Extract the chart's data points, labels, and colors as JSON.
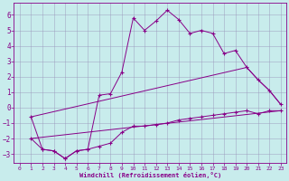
{
  "xlabel": "Windchill (Refroidissement éolien,°C)",
  "xlim": [
    -0.5,
    23.5
  ],
  "ylim": [
    -3.6,
    6.8
  ],
  "yticks": [
    -3,
    -2,
    -1,
    0,
    1,
    2,
    3,
    4,
    5,
    6
  ],
  "xticks": [
    0,
    1,
    2,
    3,
    4,
    5,
    6,
    7,
    8,
    9,
    10,
    11,
    12,
    13,
    14,
    15,
    16,
    17,
    18,
    19,
    20,
    21,
    22,
    23
  ],
  "background_color": "#c8ecec",
  "line_color": "#880088",
  "grid_color": "#9999bb",
  "lines": [
    {
      "x": [
        1,
        2,
        3,
        4,
        5,
        6,
        7,
        8,
        9,
        10,
        11,
        12,
        13,
        14,
        15,
        16,
        17,
        18,
        19,
        20,
        21,
        22,
        23
      ],
      "y": [
        -0.6,
        -2.7,
        -2.8,
        -3.3,
        -2.8,
        -2.7,
        0.8,
        0.9,
        2.3,
        5.8,
        5.0,
        5.6,
        6.3,
        5.7,
        4.8,
        5.0,
        4.8,
        3.5,
        3.7,
        2.6,
        1.8,
        1.1,
        0.2
      ],
      "marker": true
    },
    {
      "x": [
        1,
        20,
        21,
        22,
        23
      ],
      "y": [
        -0.6,
        2.6,
        1.8,
        1.1,
        0.2
      ],
      "marker": false
    },
    {
      "x": [
        1,
        23
      ],
      "y": [
        -2.0,
        -0.2
      ],
      "marker": false
    },
    {
      "x": [
        1,
        2,
        3,
        4,
        5,
        6,
        7,
        8,
        9,
        10,
        11,
        12,
        13,
        14,
        15,
        16,
        17,
        18,
        19,
        20,
        21,
        22,
        23
      ],
      "y": [
        -2.0,
        -2.7,
        -2.8,
        -3.3,
        -2.8,
        -2.7,
        -2.5,
        -2.3,
        -1.6,
        -1.2,
        -1.2,
        -1.1,
        -1.0,
        -0.8,
        -0.7,
        -0.6,
        -0.5,
        -0.4,
        -0.3,
        -0.2,
        -0.4,
        -0.2,
        -0.2
      ],
      "marker": true
    }
  ]
}
